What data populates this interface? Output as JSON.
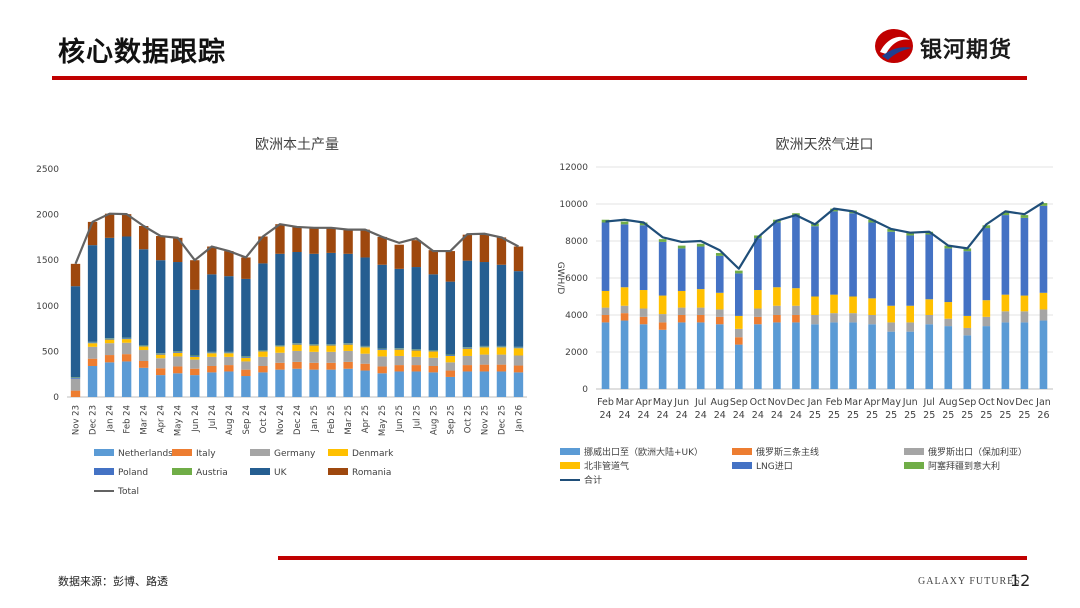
{
  "header": {
    "title": "核心数据跟踪",
    "brand": "银河期货"
  },
  "footer": {
    "source": "数据来源：彭博、路透",
    "brand_en": "GALAXY FUTURES",
    "page": "12"
  },
  "colors": {
    "accent": "#c00000"
  },
  "chart_data": [
    {
      "type": "bar",
      "stacked": true,
      "title": "欧洲本土产量",
      "ylim": [
        0,
        2500
      ],
      "yticks": [
        "0",
        "500",
        "1000",
        "1500",
        "2000",
        "2500"
      ],
      "categories": [
        "Nov 23",
        "Dec 23",
        "Jan 24",
        "Feb 24",
        "Mar 24",
        "Apr 24",
        "May 24",
        "Jun 24",
        "Jul 24",
        "Aug 24",
        "Sep 24",
        "Oct 24",
        "Nov 24",
        "Dec 24",
        "Jan 25",
        "Feb 25",
        "Mar 25",
        "Apr 25",
        "May 25",
        "Jun 25",
        "Jul 25",
        "Aug 25",
        "Sep 25",
        "Oct 25",
        "Nov 25",
        "Dec 25",
        "Jan 26"
      ],
      "series": [
        {
          "name": "Netherlands",
          "color": "#5b9bd5",
          "values": [
            0,
            340,
            380,
            390,
            320,
            240,
            260,
            240,
            270,
            280,
            230,
            270,
            300,
            310,
            300,
            300,
            310,
            290,
            260,
            280,
            280,
            270,
            220,
            280,
            280,
            280,
            270
          ]
        },
        {
          "name": "Italy",
          "color": "#ed7d31",
          "values": [
            70,
            80,
            80,
            80,
            75,
            75,
            75,
            70,
            70,
            70,
            70,
            70,
            75,
            75,
            75,
            75,
            75,
            75,
            75,
            70,
            70,
            70,
            70,
            70,
            75,
            75,
            75
          ]
        },
        {
          "name": "Germany",
          "color": "#a5a5a5",
          "values": [
            130,
            130,
            130,
            125,
            120,
            110,
            110,
            100,
            100,
            90,
            90,
            100,
            110,
            120,
            120,
            120,
            120,
            110,
            110,
            100,
            90,
            90,
            90,
            100,
            110,
            110,
            110
          ]
        },
        {
          "name": "Denmark",
          "color": "#ffc000",
          "values": [
            0,
            40,
            40,
            40,
            40,
            40,
            40,
            30,
            40,
            40,
            40,
            60,
            70,
            70,
            70,
            70,
            70,
            70,
            70,
            70,
            70,
            70,
            70,
            80,
            80,
            80,
            80
          ]
        },
        {
          "name": "Poland",
          "color": "#4472c4",
          "values": [
            10,
            10,
            10,
            10,
            10,
            10,
            10,
            10,
            10,
            10,
            10,
            10,
            10,
            10,
            10,
            10,
            10,
            10,
            10,
            10,
            10,
            10,
            10,
            10,
            10,
            10,
            10
          ]
        },
        {
          "name": "Austria",
          "color": "#70ad47",
          "values": [
            5,
            5,
            5,
            5,
            5,
            5,
            5,
            5,
            5,
            5,
            5,
            5,
            5,
            5,
            5,
            5,
            5,
            5,
            5,
            5,
            5,
            5,
            5,
            5,
            5,
            5,
            5
          ]
        },
        {
          "name": "UK",
          "color": "#255e91",
          "values": [
            1000,
            1060,
            1100,
            1110,
            1050,
            1020,
            980,
            720,
            850,
            830,
            850,
            950,
            1000,
            1000,
            990,
            1000,
            980,
            970,
            920,
            870,
            900,
            830,
            800,
            950,
            920,
            890,
            830
          ]
        },
        {
          "name": "Romania",
          "color": "#9e480e",
          "values": [
            245,
            255,
            265,
            245,
            255,
            265,
            265,
            325,
            305,
            275,
            235,
            295,
            325,
            275,
            285,
            275,
            265,
            305,
            305,
            265,
            295,
            265,
            335,
            285,
            310,
            300,
            270
          ]
        }
      ],
      "total": {
        "name": "Total",
        "color": "#636363",
        "values": [
          1460,
          1920,
          2010,
          2005,
          1875,
          1765,
          1745,
          1500,
          1650,
          1600,
          1530,
          1760,
          1895,
          1865,
          1855,
          1855,
          1835,
          1835,
          1755,
          1690,
          1740,
          1600,
          1600,
          1785,
          1790,
          1750,
          1650
        ]
      },
      "legend": [
        "Netherlands",
        "Italy",
        "Germany",
        "Denmark",
        "Poland",
        "Austria",
        "UK",
        "Romania",
        "Total"
      ]
    },
    {
      "type": "bar",
      "stacked": true,
      "title": "欧洲天然气进口",
      "ylabel": "GWH/D",
      "ylim": [
        0,
        12000
      ],
      "yticks": [
        "0",
        "2000",
        "4000",
        "6000",
        "8000",
        "10000",
        "12000"
      ],
      "categories": [
        "Feb 24",
        "Mar 24",
        "Apr 24",
        "May 24",
        "Jun 24",
        "Jul 24",
        "Aug 24",
        "Sep 24",
        "Oct 24",
        "Nov 24",
        "Dec 24",
        "Jan 25",
        "Feb 25",
        "Mar 25",
        "Apr 25",
        "May 25",
        "Jun 25",
        "Jul 25",
        "Aug 25",
        "Sep 25",
        "Oct 25",
        "Nov 25",
        "Dec 25",
        "Jan 26"
      ],
      "series": [
        {
          "name": "挪威出口至（欧洲大陆+UK）",
          "color": "#5b9bd5",
          "values": [
            3600,
            3700,
            3500,
            3200,
            3600,
            3600,
            3500,
            2400,
            3500,
            3600,
            3600,
            3500,
            3600,
            3600,
            3500,
            3100,
            3100,
            3500,
            3400,
            2900,
            3400,
            3600,
            3600,
            3700
          ]
        },
        {
          "name": "俄罗斯三条主线",
          "color": "#ed7d31",
          "values": [
            400,
            400,
            400,
            400,
            400,
            400,
            400,
            400,
            400,
            400,
            400,
            0,
            0,
            0,
            0,
            0,
            0,
            0,
            0,
            0,
            0,
            0,
            0,
            0
          ]
        },
        {
          "name": "俄罗斯出口（保加利亚）",
          "color": "#a5a5a5",
          "values": [
            400,
            400,
            450,
            450,
            400,
            400,
            400,
            450,
            450,
            500,
            500,
            500,
            500,
            500,
            500,
            500,
            500,
            500,
            400,
            400,
            500,
            600,
            600,
            600
          ]
        },
        {
          "name": "北非管道气",
          "color": "#ffc000",
          "values": [
            900,
            1000,
            1000,
            1000,
            900,
            1000,
            900,
            700,
            1000,
            1000,
            950,
            1000,
            1000,
            900,
            900,
            900,
            900,
            850,
            900,
            650,
            900,
            900,
            850,
            900
          ]
        },
        {
          "name": "LNG进口",
          "color": "#4472c4",
          "values": [
            3700,
            3400,
            3500,
            2900,
            2300,
            2300,
            2000,
            2300,
            2800,
            3500,
            3900,
            3800,
            4500,
            4500,
            4100,
            4000,
            3800,
            3500,
            2900,
            3500,
            3900,
            4300,
            4200,
            4700
          ]
        },
        {
          "name": "阿塞拜疆到意大利",
          "color": "#70ad47",
          "values": [
            150,
            150,
            150,
            150,
            150,
            150,
            150,
            150,
            150,
            150,
            150,
            150,
            150,
            150,
            150,
            150,
            150,
            150,
            150,
            150,
            150,
            150,
            150,
            150
          ]
        }
      ],
      "total": {
        "name": "合计",
        "color": "#1f4e79",
        "values": [
          9050,
          9150,
          9000,
          8200,
          7950,
          8000,
          7500,
          6500,
          8200,
          9100,
          9400,
          8900,
          9750,
          9600,
          9150,
          8650,
          8450,
          8500,
          7750,
          7600,
          8900,
          9600,
          9450,
          10100
        ]
      },
      "legend": [
        "挪威出口至（欧洲大陆+UK）",
        "俄罗斯三条主线",
        "俄罗斯出口（保加利亚）",
        "北非管道气",
        "LNG进口",
        "阿塞拜疆到意大利",
        "合计"
      ]
    }
  ]
}
